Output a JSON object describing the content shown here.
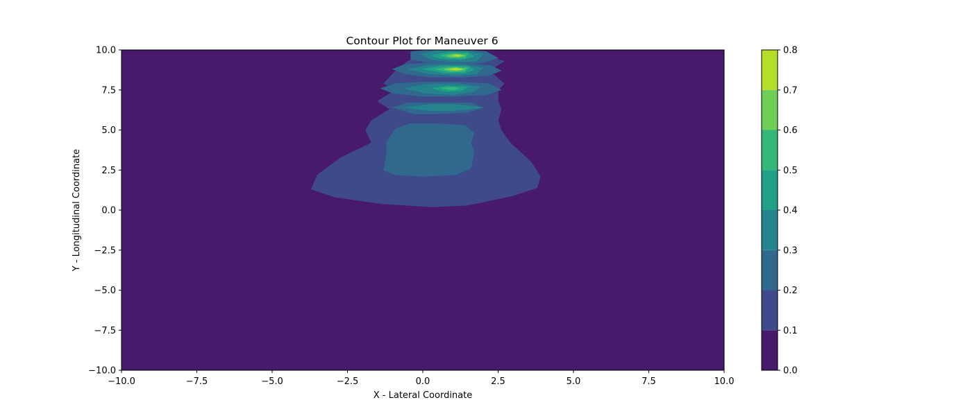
{
  "chart_data": {
    "type": "contour",
    "title": "Contour Plot for Maneuver 6",
    "xlabel": "X - Lateral Coordinate",
    "ylabel": "Y - Longitudinal Coordinate",
    "xlim": [
      -10,
      10
    ],
    "ylim": [
      -10,
      10
    ],
    "xticks": [
      -10,
      -7.5,
      -5,
      -2.5,
      0,
      2.5,
      5,
      7.5,
      10
    ],
    "yticks": [
      -10,
      -7.5,
      -5,
      -2.5,
      0,
      2.5,
      5,
      7.5,
      10
    ],
    "xtick_labels": [
      "−10.0",
      "−7.5",
      "−5.0",
      "−2.5",
      "0.0",
      "2.5",
      "5.0",
      "7.5",
      "10.0"
    ],
    "ytick_labels": [
      "−10.0",
      "−7.5",
      "−5.0",
      "−2.5",
      "0.0",
      "2.5",
      "5.0",
      "7.5",
      "10.0"
    ],
    "grid": false,
    "colormap": "viridis",
    "levels": [
      0.0,
      0.1,
      0.2,
      0.3,
      0.4,
      0.5,
      0.6,
      0.7,
      0.8
    ],
    "level_labels": [
      "0.0",
      "0.1",
      "0.2",
      "0.3",
      "0.4",
      "0.5",
      "0.6",
      "0.7",
      "0.8"
    ],
    "level_colors": [
      "#481a6c",
      "#3e4a89",
      "#30688e",
      "#25838e",
      "#1fa188",
      "#35b779",
      "#6ece58",
      "#b5de2b",
      "#fde725"
    ],
    "regions": [
      {
        "level": 0.1,
        "polygon": [
          [
            -3.7,
            1.3
          ],
          [
            -3.5,
            2.2
          ],
          [
            -2.7,
            3.3
          ],
          [
            -1.7,
            4.2
          ],
          [
            -1.9,
            5.0
          ],
          [
            -1.7,
            5.6
          ],
          [
            -1.1,
            6.3
          ],
          [
            -1.5,
            6.8
          ],
          [
            -0.9,
            7.5
          ],
          [
            -1.3,
            7.9
          ],
          [
            -0.9,
            8.7
          ],
          [
            -0.5,
            9.3
          ],
          [
            0.6,
            10.0
          ],
          [
            1.4,
            10.0
          ],
          [
            2.7,
            9.3
          ],
          [
            2.2,
            8.7
          ],
          [
            2.7,
            7.9
          ],
          [
            2.5,
            7.5
          ],
          [
            2.5,
            6.8
          ],
          [
            2.6,
            6.3
          ],
          [
            2.5,
            5.6
          ],
          [
            2.6,
            5.0
          ],
          [
            2.9,
            4.2
          ],
          [
            3.6,
            3.0
          ],
          [
            3.9,
            2.1
          ],
          [
            3.8,
            1.4
          ],
          [
            3.0,
            0.9
          ],
          [
            1.5,
            0.3
          ],
          [
            0.3,
            0.2
          ],
          [
            -1.4,
            0.4
          ],
          [
            -2.9,
            0.8
          ]
        ]
      },
      {
        "level": 0.2,
        "polygon": [
          [
            -1.3,
            2.5
          ],
          [
            -1.2,
            3.6
          ],
          [
            -1.2,
            4.3
          ],
          [
            -1.0,
            4.8
          ],
          [
            -0.9,
            5.1
          ],
          [
            -0.4,
            5.4
          ],
          [
            0.4,
            5.4
          ],
          [
            1.4,
            5.3
          ],
          [
            1.7,
            4.8
          ],
          [
            1.6,
            4.2
          ],
          [
            1.7,
            3.6
          ],
          [
            1.6,
            2.6
          ],
          [
            1.1,
            2.2
          ],
          [
            0.0,
            2.1
          ],
          [
            -0.9,
            2.2
          ]
        ]
      },
      {
        "level": 0.2,
        "polygon": [
          [
            -1.0,
            6.4
          ],
          [
            -0.5,
            6.7
          ],
          [
            0.5,
            6.7
          ],
          [
            1.6,
            6.7
          ],
          [
            2.0,
            6.4
          ],
          [
            1.5,
            6.1
          ],
          [
            0.5,
            6.0
          ],
          [
            -0.3,
            6.0
          ]
        ]
      },
      {
        "level": 0.2,
        "polygon": [
          [
            -1.4,
            7.6
          ],
          [
            -0.9,
            7.9
          ],
          [
            0.1,
            8.0
          ],
          [
            1.1,
            8.0
          ],
          [
            2.2,
            7.9
          ],
          [
            2.6,
            7.5
          ],
          [
            2.1,
            7.2
          ],
          [
            1.0,
            7.1
          ],
          [
            -0.1,
            7.1
          ],
          [
            -1.0,
            7.3
          ]
        ]
      },
      {
        "level": 0.2,
        "polygon": [
          [
            -1.0,
            8.8
          ],
          [
            -0.6,
            9.1
          ],
          [
            0.3,
            9.2
          ],
          [
            1.4,
            9.2
          ],
          [
            2.3,
            9.0
          ],
          [
            2.6,
            8.7
          ],
          [
            2.2,
            8.4
          ],
          [
            1.3,
            8.3
          ],
          [
            0.2,
            8.3
          ],
          [
            -0.6,
            8.5
          ]
        ]
      },
      {
        "level": 0.2,
        "polygon": [
          [
            -0.4,
            9.9
          ],
          [
            0.3,
            10.0
          ],
          [
            1.4,
            10.0
          ],
          [
            2.1,
            9.9
          ],
          [
            2.5,
            9.5
          ],
          [
            2.0,
            9.2
          ],
          [
            1.2,
            9.1
          ],
          [
            0.3,
            9.2
          ],
          [
            -0.4,
            9.4
          ]
        ]
      },
      {
        "level": 0.3,
        "polygon": [
          [
            -0.6,
            6.4
          ],
          [
            0.2,
            6.6
          ],
          [
            1.1,
            6.6
          ],
          [
            2.0,
            6.4
          ],
          [
            1.0,
            6.2
          ],
          [
            0.2,
            6.2
          ]
        ]
      },
      {
        "level": 0.3,
        "polygon": [
          [
            -0.6,
            7.6
          ],
          [
            0.1,
            7.85
          ],
          [
            1.1,
            7.9
          ],
          [
            1.9,
            7.7
          ],
          [
            1.7,
            7.4
          ],
          [
            1.0,
            7.2
          ],
          [
            0.1,
            7.3
          ]
        ]
      },
      {
        "level": 0.3,
        "polygon": [
          [
            -0.5,
            8.8
          ],
          [
            0.2,
            9.05
          ],
          [
            1.2,
            9.1
          ],
          [
            2.0,
            8.9
          ],
          [
            1.8,
            8.5
          ],
          [
            1.1,
            8.4
          ],
          [
            0.2,
            8.5
          ]
        ]
      },
      {
        "level": 0.3,
        "polygon": [
          [
            -0.1,
            9.75
          ],
          [
            0.4,
            9.95
          ],
          [
            1.4,
            9.95
          ],
          [
            2.0,
            9.75
          ],
          [
            1.8,
            9.3
          ],
          [
            1.0,
            9.25
          ],
          [
            0.3,
            9.4
          ]
        ]
      },
      {
        "level": 0.4,
        "polygon": [
          [
            0.3,
            7.6
          ],
          [
            0.8,
            7.75
          ],
          [
            1.5,
            7.7
          ],
          [
            1.3,
            7.45
          ],
          [
            0.8,
            7.4
          ]
        ]
      },
      {
        "level": 0.4,
        "polygon": [
          [
            0.0,
            8.8
          ],
          [
            0.6,
            9.0
          ],
          [
            1.5,
            9.0
          ],
          [
            1.7,
            8.75
          ],
          [
            1.4,
            8.55
          ],
          [
            0.7,
            8.55
          ]
        ]
      },
      {
        "level": 0.4,
        "polygon": [
          [
            0.3,
            9.65
          ],
          [
            0.8,
            9.85
          ],
          [
            1.5,
            9.85
          ],
          [
            1.7,
            9.6
          ],
          [
            1.3,
            9.4
          ],
          [
            0.6,
            9.45
          ]
        ]
      },
      {
        "level": 0.5,
        "polygon": [
          [
            0.6,
            7.6
          ],
          [
            0.9,
            7.68
          ],
          [
            1.2,
            7.62
          ],
          [
            1.0,
            7.5
          ]
        ]
      },
      {
        "level": 0.5,
        "polygon": [
          [
            0.4,
            8.8
          ],
          [
            0.9,
            8.95
          ],
          [
            1.5,
            8.9
          ],
          [
            1.4,
            8.65
          ],
          [
            0.9,
            8.62
          ]
        ]
      },
      {
        "level": 0.5,
        "polygon": [
          [
            0.6,
            9.65
          ],
          [
            1.0,
            9.8
          ],
          [
            1.5,
            9.75
          ],
          [
            1.4,
            9.5
          ],
          [
            0.9,
            9.5
          ]
        ]
      },
      {
        "level": 0.6,
        "polygon": [
          [
            0.7,
            8.8
          ],
          [
            1.1,
            8.9
          ],
          [
            1.4,
            8.8
          ],
          [
            1.2,
            8.7
          ],
          [
            0.9,
            8.7
          ]
        ]
      },
      {
        "level": 0.6,
        "polygon": [
          [
            0.8,
            9.65
          ],
          [
            1.1,
            9.73
          ],
          [
            1.4,
            9.65
          ],
          [
            1.2,
            9.55
          ],
          [
            0.9,
            9.57
          ]
        ]
      },
      {
        "level": 0.7,
        "polygon": [
          [
            0.9,
            8.8
          ],
          [
            1.1,
            8.85
          ],
          [
            1.3,
            8.8
          ],
          [
            1.1,
            8.74
          ]
        ]
      },
      {
        "level": 0.7,
        "polygon": [
          [
            1.0,
            9.65
          ],
          [
            1.2,
            9.7
          ],
          [
            1.3,
            9.65
          ],
          [
            1.15,
            9.6
          ]
        ]
      }
    ]
  }
}
